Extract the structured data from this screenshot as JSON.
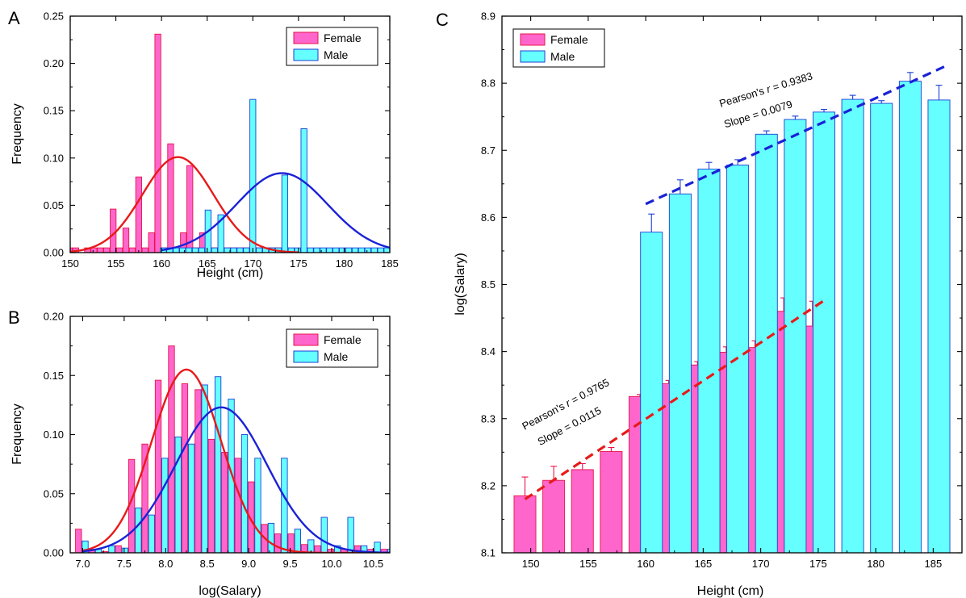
{
  "colors": {
    "female_fill": "#ff66cc",
    "female_edge": "#e8144a",
    "male_fill": "#66ffff",
    "male_edge": "#1a3fd6",
    "female_line": "#e81a1a",
    "male_line": "#1a22d6"
  },
  "chart_data": [
    {
      "panel": "A",
      "type": "bar",
      "xlabel": "Height (cm)",
      "ylabel": "Frequency",
      "xlim": [
        150,
        185
      ],
      "ylim": [
        0,
        0.25
      ],
      "xticks": [
        "150",
        "155",
        "160",
        "165",
        "170",
        "175",
        "180",
        "185"
      ],
      "yticks": [
        "0.00",
        "0.05",
        "0.10",
        "0.15",
        "0.20",
        "0.25"
      ],
      "legend": {
        "position": "top-right",
        "entries": [
          "Female",
          "Male"
        ]
      },
      "bin_width": 0.65,
      "series": [
        {
          "name": "Female",
          "x": [
            149.9,
            150.6,
            151.2,
            151.9,
            152.6,
            153.3,
            154.0,
            154.7,
            155.4,
            156.1,
            156.8,
            157.5,
            158.2,
            158.9,
            159.6,
            160.3,
            161.0,
            161.7,
            162.4,
            163.1,
            163.8,
            164.5,
            165.2,
            165.9,
            166.6,
            167.3,
            168.0,
            168.7,
            169.4,
            170.1,
            170.8,
            171.5,
            172.2,
            172.9,
            173.6
          ],
          "values": [
            0.005,
            0.005,
            0.0,
            0.005,
            0.005,
            0.005,
            0.005,
            0.046,
            0.005,
            0.026,
            0.005,
            0.08,
            0.005,
            0.021,
            0.231,
            0.005,
            0.115,
            0.005,
            0.021,
            0.092,
            0.005,
            0.021,
            0.005,
            0.005,
            0.005,
            0.005,
            0.005,
            0.005,
            0.005,
            0.005,
            0.005,
            0.005,
            0.005,
            0.005,
            0.005
          ]
        },
        {
          "name": "Male",
          "x": [
            160.2,
            160.9,
            161.6,
            162.3,
            163.0,
            163.7,
            164.4,
            165.1,
            165.8,
            166.5,
            167.2,
            167.9,
            168.6,
            169.3,
            170.0,
            170.7,
            171.4,
            172.1,
            172.8,
            173.5,
            174.2,
            174.9,
            175.6,
            176.3,
            177.0,
            177.7,
            178.4,
            179.1,
            179.8,
            180.5,
            181.2,
            181.9,
            182.6,
            183.3,
            184.0,
            184.7
          ],
          "values": [
            0.005,
            0.005,
            0.005,
            0.005,
            0.005,
            0.005,
            0.005,
            0.045,
            0.005,
            0.04,
            0.005,
            0.005,
            0.005,
            0.005,
            0.162,
            0.005,
            0.005,
            0.005,
            0.005,
            0.082,
            0.005,
            0.005,
            0.131,
            0.005,
            0.005,
            0.005,
            0.005,
            0.005,
            0.005,
            0.005,
            0.005,
            0.005,
            0.005,
            0.005,
            0.005,
            0.005
          ]
        }
      ],
      "fits": [
        {
          "name": "Female",
          "type": "gaussian",
          "mean": 161.8,
          "sigma": 3.9,
          "peak": 0.101,
          "x_range": [
            149.5,
            175.0
          ]
        },
        {
          "name": "Male",
          "type": "gaussian",
          "mean": 173.2,
          "sigma": 5.0,
          "peak": 0.084,
          "x_range": [
            160.0,
            185.0
          ]
        }
      ]
    },
    {
      "panel": "B",
      "type": "bar",
      "xlabel": "log(Salary)",
      "ylabel": "Frequency",
      "xlim": [
        6.85,
        10.7
      ],
      "ylim": [
        0,
        0.2
      ],
      "xticks": [
        "7.0",
        "7.5",
        "8.0",
        "8.5",
        "9.0",
        "9.5",
        "10.0",
        "10.5"
      ],
      "yticks": [
        "0.00",
        "0.05",
        "0.10",
        "0.15",
        "0.20"
      ],
      "legend": {
        "position": "top-right",
        "entries": [
          "Female",
          "Male"
        ]
      },
      "bin_width": 0.072,
      "series": [
        {
          "name": "Female",
          "x": [
            6.95,
            7.11,
            7.27,
            7.43,
            7.59,
            7.75,
            7.91,
            8.07,
            8.23,
            8.39,
            8.55,
            8.71,
            8.87,
            9.03,
            9.19,
            9.35,
            9.51,
            9.67,
            9.83,
            9.99,
            10.15,
            10.31,
            10.47,
            10.63
          ],
          "values": [
            0.02,
            0.003,
            0.001,
            0.006,
            0.079,
            0.092,
            0.146,
            0.175,
            0.143,
            0.138,
            0.096,
            0.085,
            0.08,
            0.06,
            0.024,
            0.016,
            0.016,
            0.007,
            0.006,
            0.003,
            0.003,
            0.006,
            0.003,
            0.003
          ]
        },
        {
          "name": "Male",
          "x": [
            7.03,
            7.19,
            7.35,
            7.51,
            7.67,
            7.83,
            7.99,
            8.15,
            8.31,
            8.47,
            8.63,
            8.79,
            8.95,
            9.11,
            9.27,
            9.43,
            9.59,
            9.75,
            9.91,
            10.07,
            10.23,
            10.39,
            10.55,
            10.71
          ],
          "values": [
            0.01,
            0.003,
            0.006,
            0.004,
            0.038,
            0.032,
            0.08,
            0.098,
            0.092,
            0.142,
            0.149,
            0.13,
            0.1,
            0.08,
            0.025,
            0.08,
            0.02,
            0.011,
            0.03,
            0.006,
            0.03,
            0.006,
            0.009,
            0.003
          ]
        }
      ],
      "fits": [
        {
          "name": "Female",
          "type": "gaussian",
          "mean": 8.25,
          "sigma": 0.42,
          "peak": 0.155,
          "x_range": [
            7.0,
            10.7
          ]
        },
        {
          "name": "Male",
          "type": "gaussian",
          "mean": 8.67,
          "sigma": 0.55,
          "peak": 0.123,
          "x_range": [
            7.0,
            10.7
          ]
        }
      ]
    },
    {
      "panel": "C",
      "type": "bar",
      "xlabel": "Height (cm)",
      "ylabel": "log(Salary)",
      "xlim": [
        147.5,
        187.5
      ],
      "ylim": [
        8.1,
        8.9
      ],
      "xticks": [
        "150",
        "155",
        "160",
        "165",
        "170",
        "175",
        "180",
        "185"
      ],
      "yticks": [
        "8.1",
        "8.2",
        "8.3",
        "8.4",
        "8.5",
        "8.6",
        "8.7",
        "8.8",
        "8.9"
      ],
      "legend": {
        "position": "top-left",
        "entries": [
          "Female",
          "Male"
        ]
      },
      "series": [
        {
          "name": "Female",
          "x": [
            149.5,
            152,
            154.5,
            157,
            159.5,
            162,
            164.5,
            167,
            169.5,
            172,
            174.5
          ],
          "values": [
            8.185,
            8.208,
            8.224,
            8.251,
            8.333,
            8.352,
            8.38,
            8.399,
            8.406,
            8.46,
            8.438
          ],
          "errors": [
            0.028,
            0.021,
            0.009,
            0.006,
            0.003,
            0.005,
            0.005,
            0.008,
            0.01,
            0.02,
            0.037
          ]
        },
        {
          "name": "Male",
          "x": [
            160.5,
            163,
            165.5,
            168,
            170.5,
            173,
            175.5,
            178,
            180.5,
            183,
            185.5
          ],
          "values": [
            8.578,
            8.635,
            8.672,
            8.678,
            8.724,
            8.746,
            8.757,
            8.776,
            8.77,
            8.803,
            8.775
          ],
          "errors": [
            0.027,
            0.021,
            0.01,
            0.008,
            0.005,
            0.005,
            0.004,
            0.006,
            0.004,
            0.013,
            0.022
          ]
        }
      ],
      "fits": [
        {
          "name": "Female",
          "type": "linear",
          "x_range": [
            149.5,
            175.5
          ],
          "y_range": [
            8.18,
            8.476
          ]
        },
        {
          "name": "Male",
          "type": "linear",
          "x_range": [
            160,
            186
          ],
          "y_range": [
            8.62,
            8.825
          ]
        }
      ],
      "annotations": [
        {
          "target": "Male",
          "line1_prefix": "Pearson's ",
          "line1_italic": "r",
          "line1_suffix": " = 0.9383",
          "line2": "Slope = 0.0079"
        },
        {
          "target": "Female",
          "line1_prefix": "Pearson's ",
          "line1_italic": "r",
          "line1_suffix": " = 0.9765",
          "line2": "Slope = 0.0115"
        }
      ]
    }
  ]
}
